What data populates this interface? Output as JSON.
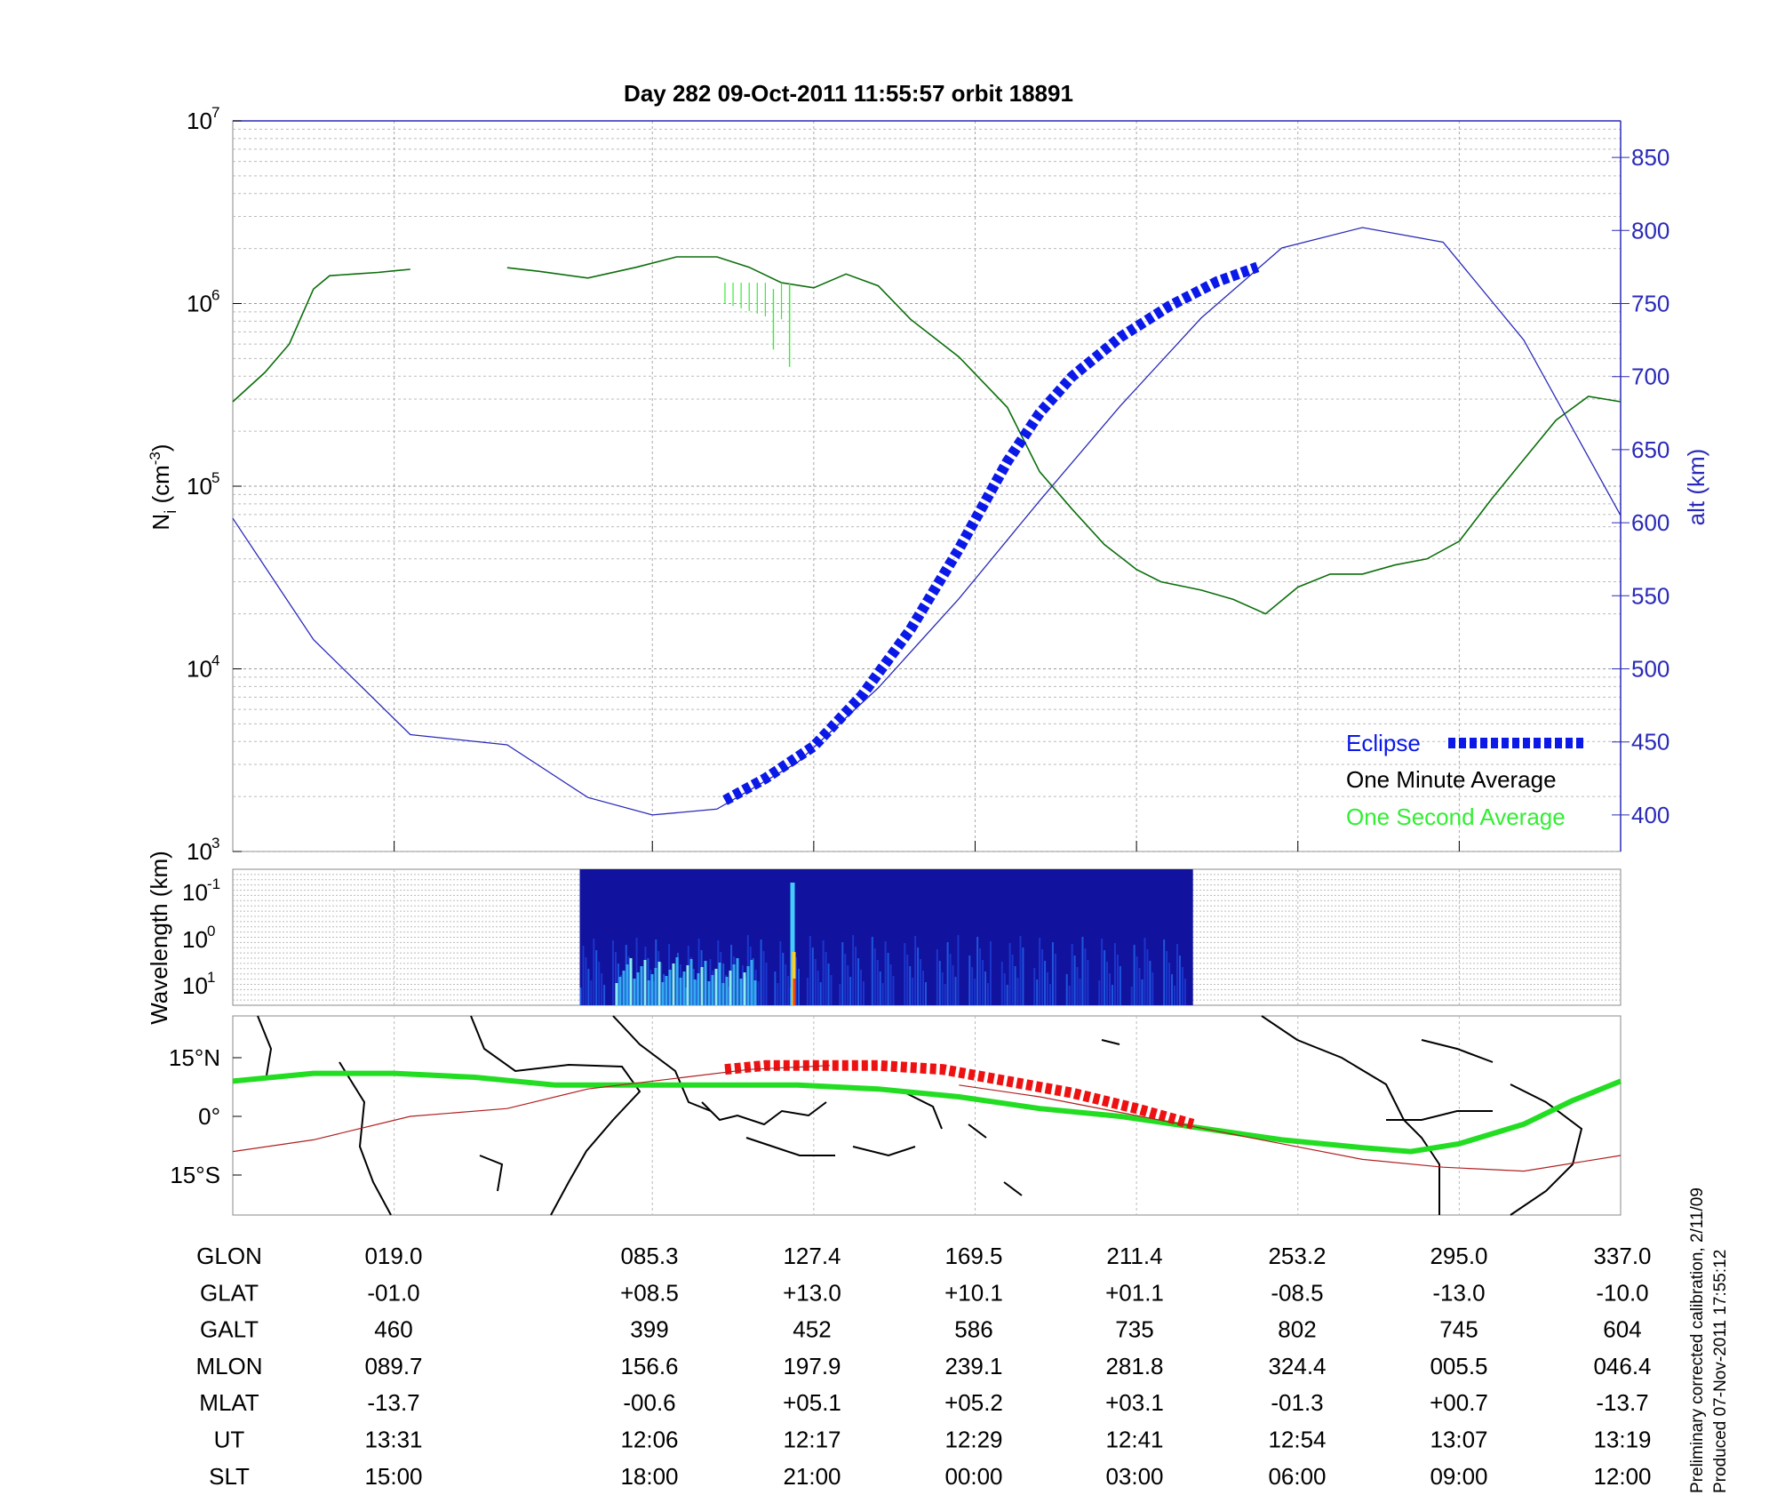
{
  "title": "Day 282  09-Oct-2011 11:55:57   orbit 18891",
  "colors": {
    "density": "#0b6e0b",
    "density_1s": "#33ee33",
    "altitude": "#2a2ab8",
    "eclipse": "#0a18e8",
    "track": "#22dd22",
    "eclipse_track": "#ee1111",
    "trace": "#b02020"
  },
  "chart_data": [
    {
      "type": "line",
      "name": "density-altitude-panel",
      "ylabel": "Ni (cm-3)",
      "ylabel_main": "N",
      "ylabel_sub": "i",
      "ylabel_unit_prefix": " (cm",
      "ylabel_unit_sup": "-3",
      "ylabel_unit_suffix": ")",
      "ylabel_right": "alt (km)",
      "yscale": "log",
      "ylim": [
        1000,
        10000000
      ],
      "yticks_base": "10",
      "yticks_exp": [
        "3",
        "4",
        "5",
        "6",
        "7"
      ],
      "y2lim": [
        375,
        875
      ],
      "y2ticks": [
        400,
        450,
        500,
        550,
        600,
        650,
        700,
        750,
        800,
        850
      ],
      "xlim": [
        0,
        8.6
      ],
      "legend": [
        {
          "label": "Eclipse",
          "color": "#0a18e8"
        },
        {
          "label": "One Minute Average",
          "color": "#000000"
        },
        {
          "label": "One Second Average",
          "color": "#33ee33"
        }
      ],
      "legend_position": "bottom-right",
      "series": [
        {
          "name": "One Minute Average",
          "axis": "left",
          "x": [
            0,
            0.2,
            0.35,
            0.5,
            0.6,
            0.75,
            0.9,
            1.0,
            1.1
          ],
          "y": [
            290000,
            420000,
            600000,
            1200000,
            1420000,
            1450000,
            1480000,
            1510000,
            1540000
          ]
        },
        {
          "name": "One Minute Average",
          "axis": "left",
          "x": [
            1.7,
            1.9,
            2.2,
            2.5,
            2.75,
            3.0,
            3.2,
            3.4,
            3.6,
            3.8,
            4.0,
            4.2,
            4.5,
            4.8,
            5.0,
            5.2,
            5.4,
            5.6,
            5.75,
            6.0,
            6.2,
            6.4,
            6.6,
            6.8,
            7.0,
            7.2,
            7.4,
            7.6,
            7.8,
            8.0,
            8.2,
            8.4,
            8.6
          ],
          "y": [
            1570000,
            1500000,
            1380000,
            1580000,
            1800000,
            1800000,
            1580000,
            1300000,
            1220000,
            1450000,
            1250000,
            820000,
            510000,
            270000,
            120000,
            75000,
            48000,
            35000,
            30000,
            27000,
            24000,
            20000,
            28000,
            33000,
            33000,
            37000,
            40000,
            50000,
            85000,
            140000,
            230000,
            310000,
            290000
          ]
        },
        {
          "name": "Altitude",
          "axis": "right",
          "x": [
            0,
            0.5,
            1.1,
            1.7,
            2.2,
            2.6,
            3.0,
            3.5,
            4.0,
            4.5,
            5.0,
            5.5,
            6.0,
            6.5,
            7.0,
            7.5,
            8.0,
            8.6
          ],
          "y": [
            603,
            520,
            455,
            448,
            412,
            400,
            404,
            436,
            487,
            548,
            615,
            680,
            740,
            788,
            802,
            792,
            725,
            605
          ]
        },
        {
          "name": "Eclipse",
          "axis": "right",
          "x": [
            3.05,
            3.3,
            3.6,
            3.9,
            4.2,
            4.5,
            4.8,
            5.0,
            5.2,
            5.5,
            5.8,
            6.1,
            6.35
          ],
          "y": [
            410,
            425,
            447,
            482,
            527,
            582,
            642,
            675,
            700,
            727,
            748,
            765,
            775
          ]
        }
      ]
    },
    {
      "type": "heatmap",
      "name": "wavelength-panel",
      "ylabel": "Wavelength (km)",
      "ylabel_base": "10",
      "yticks_exp": [
        "-1",
        "0",
        "1"
      ],
      "x_range_with_data": [
        2.15,
        5.95
      ]
    },
    {
      "type": "line",
      "name": "map-panel",
      "yticks": [
        "15°N",
        "0°",
        "15°S"
      ],
      "series": [
        {
          "name": "orbit track",
          "x": [
            0,
            0.5,
            1.0,
            1.5,
            2.0,
            2.5,
            3.0,
            3.5,
            4.0,
            4.5,
            5.0,
            5.5,
            6.0,
            6.5,
            7.0,
            7.3,
            7.6,
            8.0,
            8.3,
            8.6
          ],
          "y": [
            9,
            11,
            11,
            10,
            8,
            8,
            8,
            8,
            7,
            5,
            2,
            0,
            -3,
            -6,
            -8,
            -9,
            -7,
            -2,
            4,
            9
          ]
        },
        {
          "name": "eclipse track",
          "x": [
            3.05,
            3.3,
            3.6,
            4.0,
            4.4,
            4.8,
            5.2,
            5.6,
            5.95
          ],
          "y": [
            12,
            13,
            13,
            13,
            12,
            9,
            6,
            2,
            -2
          ]
        },
        {
          "name": "magnetic equator",
          "x": [
            0,
            0.5,
            1.1,
            1.7,
            2.2,
            2.8,
            3.2,
            3.7
          ],
          "y": [
            -9,
            -6,
            0,
            2,
            7,
            10,
            12,
            13
          ]
        }
      ]
    }
  ],
  "orbit_table": {
    "rows": [
      {
        "label": "GLON",
        "values": [
          "019.0",
          "085.3",
          "127.4",
          "169.5",
          "211.4",
          "253.2",
          "295.0",
          "337.0"
        ]
      },
      {
        "label": "GLAT",
        "values": [
          "-01.0",
          "+08.5",
          "+13.0",
          "+10.1",
          "+01.1",
          "-08.5",
          "-13.0",
          "-10.0"
        ]
      },
      {
        "label": "GALT",
        "values": [
          "460",
          "399",
          "452",
          "586",
          "735",
          "802",
          "745",
          "604"
        ]
      },
      {
        "label": "MLON",
        "values": [
          "089.7",
          "156.6",
          "197.9",
          "239.1",
          "281.8",
          "324.4",
          "005.5",
          "046.4"
        ]
      },
      {
        "label": "MLAT",
        "values": [
          "-13.7",
          "-00.6",
          "+05.1",
          "+05.2",
          "+03.1",
          "-01.3",
          "+00.7",
          "-13.7"
        ]
      },
      {
        "label": "UT",
        "values": [
          "13:31",
          "12:06",
          "12:17",
          "12:29",
          "12:41",
          "12:54",
          "13:07",
          "13:19"
        ]
      },
      {
        "label": "SLT",
        "values": [
          "15:00",
          "18:00",
          "21:00",
          "00:00",
          "03:00",
          "06:00",
          "09:00",
          "12:00"
        ]
      }
    ]
  },
  "footnote": {
    "line1": "Preliminary corrected calibration, 2/11/09",
    "line2": "Produced 07-Nov-2011 17:55:12"
  }
}
